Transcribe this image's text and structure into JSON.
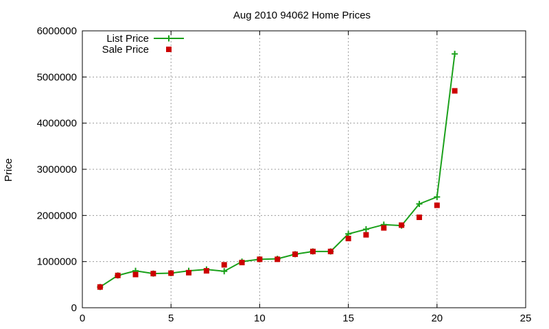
{
  "chart_data": {
    "type": "line",
    "title": "Aug 2010 94062 Home Prices",
    "xlabel": "",
    "ylabel": "Price",
    "xlim": [
      0,
      25
    ],
    "ylim": [
      0,
      6000000
    ],
    "x_ticks": [
      0,
      5,
      10,
      15,
      20,
      25
    ],
    "y_ticks": [
      0,
      1000000,
      2000000,
      3000000,
      4000000,
      5000000,
      6000000
    ],
    "grid": true,
    "legend_position": "top-left",
    "series": [
      {
        "name": "List Price",
        "type": "line",
        "marker": "plus",
        "color": "#1aa01a",
        "x": [
          1,
          2,
          3,
          4,
          5,
          6,
          7,
          8,
          9,
          10,
          11,
          12,
          13,
          14,
          15,
          16,
          17,
          18,
          19,
          20,
          21
        ],
        "values": [
          450000,
          700000,
          800000,
          740000,
          750000,
          800000,
          830000,
          790000,
          1000000,
          1050000,
          1060000,
          1160000,
          1220000,
          1220000,
          1600000,
          1700000,
          1800000,
          1780000,
          2250000,
          2400000,
          5500000
        ]
      },
      {
        "name": "Sale Price",
        "type": "scatter",
        "marker": "square",
        "color": "#cc0000",
        "x": [
          1,
          2,
          3,
          4,
          5,
          6,
          7,
          8,
          9,
          10,
          11,
          12,
          13,
          14,
          15,
          16,
          17,
          18,
          19,
          20,
          21
        ],
        "values": [
          450000,
          700000,
          720000,
          740000,
          750000,
          760000,
          800000,
          930000,
          980000,
          1050000,
          1050000,
          1160000,
          1220000,
          1220000,
          1500000,
          1580000,
          1730000,
          1790000,
          1960000,
          2220000,
          4700000
        ]
      }
    ]
  }
}
